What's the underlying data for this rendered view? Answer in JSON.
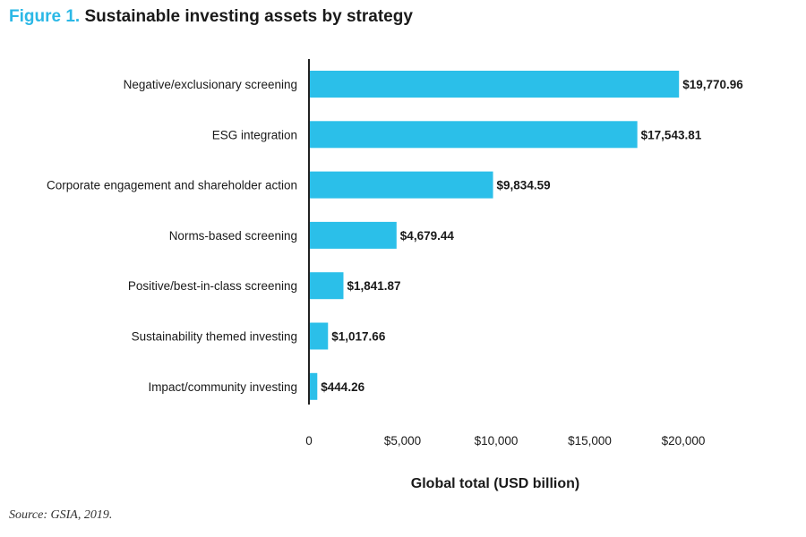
{
  "figure": {
    "label": "Figure 1.",
    "title": "Sustainable investing assets by strategy",
    "source": "Source: GSIA, 2019."
  },
  "chart_data": {
    "type": "bar",
    "orientation": "horizontal",
    "categories": [
      "Negative/exclusionary screening",
      "ESG integration",
      "Corporate engagement and shareholder action",
      "Norms-based screening",
      "Positive/best-in-class screening",
      "Sustainability themed investing",
      "Impact/community investing"
    ],
    "values": [
      19770.96,
      17543.81,
      9834.59,
      4679.44,
      1841.87,
      1017.66,
      444.26
    ],
    "value_labels": [
      "$19,770.96",
      "$17,543.81",
      "$9,834.59",
      "$4,679.44",
      "$1,841.87",
      "$1,017.66",
      "$444.26"
    ],
    "xlabel": "Global total (USD billion)",
    "ylabel": "",
    "xlim": [
      0,
      20000
    ],
    "x_ticks": [
      0,
      5000,
      10000,
      15000,
      20000
    ],
    "x_tick_labels": [
      "0",
      "$5,000",
      "$10,000",
      "$15,000",
      "$20,000"
    ],
    "grid": false,
    "legend": "none",
    "bar_color": "#2bbfe9"
  }
}
